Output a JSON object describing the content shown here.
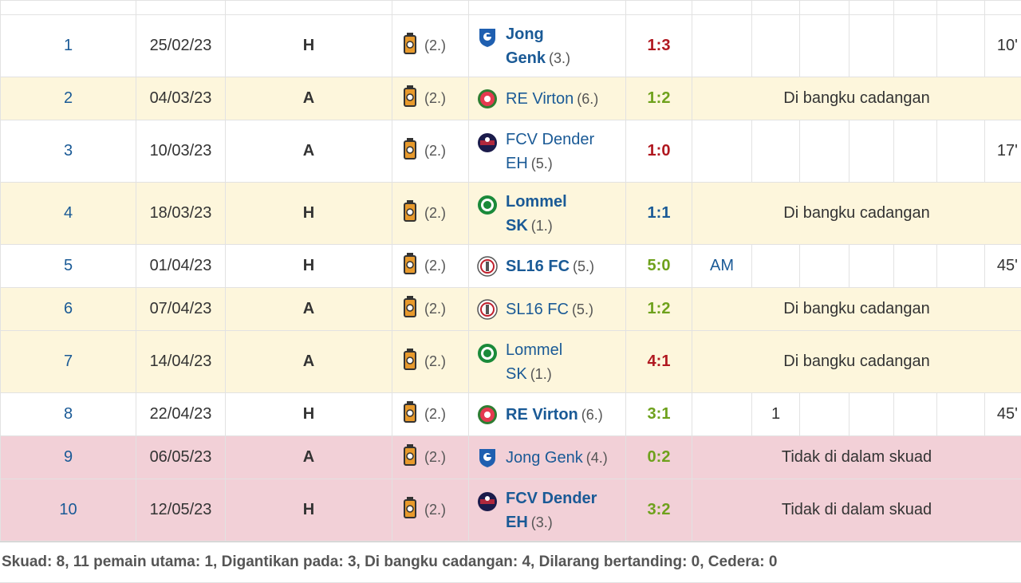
{
  "matches": [
    {
      "num": "1",
      "date": "25/02/23",
      "venue": "H",
      "team_rank": "(2.)",
      "opp_line1": "Jong",
      "opp_line2": "Genk",
      "opp_rank": "(3.)",
      "opp_bold": true,
      "opp_icon": "genk-crest-icon",
      "result": "1:3",
      "result_type": "loss",
      "status": "normal",
      "info": "",
      "pos": "",
      "goal": "",
      "minutes": "10'"
    },
    {
      "num": "2",
      "date": "04/03/23",
      "venue": "A",
      "team_rank": "(2.)",
      "opp_line1": "RE Virton",
      "opp_line2": "",
      "opp_rank": "(6.)",
      "opp_bold": false,
      "opp_icon": "virton-crest-icon",
      "result": "1:2",
      "result_type": "win",
      "status": "bench",
      "info": "Di bangku cadangan",
      "pos": "",
      "goal": "",
      "minutes": ""
    },
    {
      "num": "3",
      "date": "10/03/23",
      "venue": "A",
      "team_rank": "(2.)",
      "opp_line1": "FCV Dender",
      "opp_line2": "EH",
      "opp_rank": "(5.)",
      "opp_bold": false,
      "opp_icon": "dender-crest-icon",
      "result": "1:0",
      "result_type": "loss",
      "status": "normal",
      "info": "",
      "pos": "",
      "goal": "",
      "minutes": "17'"
    },
    {
      "num": "4",
      "date": "18/03/23",
      "venue": "H",
      "team_rank": "(2.)",
      "opp_line1": "Lommel",
      "opp_line2": "SK",
      "opp_rank": "(1.)",
      "opp_bold": true,
      "opp_icon": "lommel-crest-icon",
      "result": "1:1",
      "result_type": "draw",
      "status": "bench",
      "info": "Di bangku cadangan",
      "pos": "",
      "goal": "",
      "minutes": ""
    },
    {
      "num": "5",
      "date": "01/04/23",
      "venue": "H",
      "team_rank": "(2.)",
      "opp_line1": "SL16 FC",
      "opp_line2": "",
      "opp_rank": "(5.)",
      "opp_bold": true,
      "opp_icon": "sl16-crest-icon",
      "result": "5:0",
      "result_type": "win",
      "status": "normal",
      "info": "",
      "pos": "AM",
      "goal": "",
      "minutes": "45'"
    },
    {
      "num": "6",
      "date": "07/04/23",
      "venue": "A",
      "team_rank": "(2.)",
      "opp_line1": "SL16 FC",
      "opp_line2": "",
      "opp_rank": "(5.)",
      "opp_bold": false,
      "opp_icon": "sl16-crest-icon",
      "result": "1:2",
      "result_type": "win",
      "status": "bench",
      "info": "Di bangku cadangan",
      "pos": "",
      "goal": "",
      "minutes": ""
    },
    {
      "num": "7",
      "date": "14/04/23",
      "venue": "A",
      "team_rank": "(2.)",
      "opp_line1": "Lommel",
      "opp_line2": "SK",
      "opp_rank": "(1.)",
      "opp_bold": false,
      "opp_icon": "lommel-crest-icon",
      "result": "4:1",
      "result_type": "loss",
      "status": "bench",
      "info": "Di bangku cadangan",
      "pos": "",
      "goal": "",
      "minutes": ""
    },
    {
      "num": "8",
      "date": "22/04/23",
      "venue": "H",
      "team_rank": "(2.)",
      "opp_line1": "RE Virton",
      "opp_line2": "",
      "opp_rank": "(6.)",
      "opp_bold": true,
      "opp_icon": "virton-crest-icon",
      "result": "3:1",
      "result_type": "win",
      "status": "normal",
      "info": "",
      "pos": "",
      "goal": "1",
      "minutes": "45'"
    },
    {
      "num": "9",
      "date": "06/05/23",
      "venue": "A",
      "team_rank": "(2.)",
      "opp_line1": "Jong Genk",
      "opp_line2": "",
      "opp_rank": "(4.)",
      "opp_bold": false,
      "opp_icon": "genk-crest-icon",
      "result": "0:2",
      "result_type": "win",
      "status": "nosquad",
      "info": "Tidak di dalam skuad",
      "pos": "",
      "goal": "",
      "minutes": ""
    },
    {
      "num": "10",
      "date": "12/05/23",
      "venue": "H",
      "team_rank": "(2.)",
      "opp_line1": "FCV Dender",
      "opp_line2": "EH",
      "opp_rank": "(3.)",
      "opp_bold": true,
      "opp_icon": "dender-crest-icon",
      "result": "3:2",
      "result_type": "win",
      "status": "nosquad",
      "info": "Tidak di dalam skuad",
      "pos": "",
      "goal": "",
      "minutes": ""
    }
  ],
  "team_icon": "beveren-crest-icon",
  "footer": "Skuad: 8, 11 pemain utama: 1, Digantikan pada: 3, Di bangku cadangan: 4, Dilarang bertanding: 0, Cedera: 0",
  "colors": {
    "bench_row": "#fdf6dc",
    "nosquad_row": "#f2d0d7",
    "link": "#1a5a96",
    "win": "#6ea11c",
    "loss": "#b01820"
  }
}
